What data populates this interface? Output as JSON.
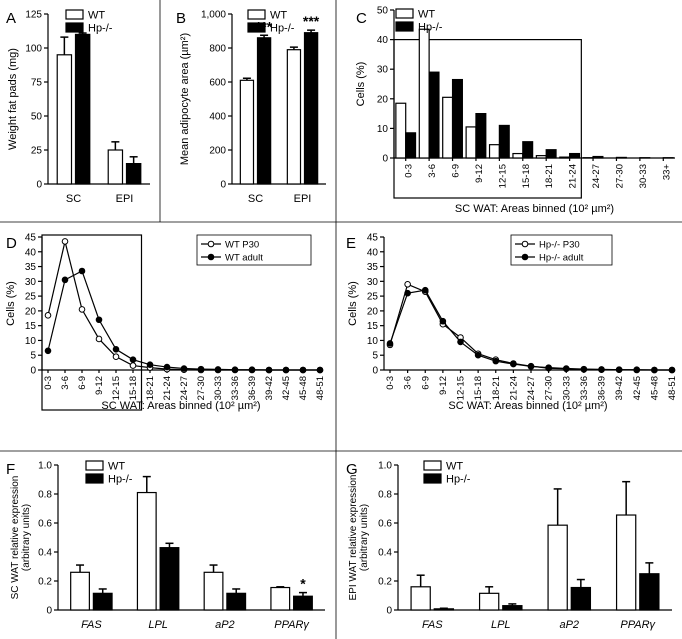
{
  "chart_data": [
    {
      "panel": "A",
      "type": "bar",
      "ylabel": "Weight fat pads (mg)",
      "categories": [
        "SC",
        "EPI"
      ],
      "ylim": [
        0,
        125
      ],
      "yticks": [
        0,
        25,
        50,
        75,
        100,
        125
      ],
      "tick_labels": [
        "0",
        "25",
        "50",
        "75",
        "100",
        "125"
      ],
      "series": [
        {
          "name": "WT",
          "fill": "white",
          "values": [
            95,
            25
          ],
          "errors": [
            13,
            6
          ]
        },
        {
          "name": "Hp-/-",
          "fill": "black",
          "values": [
            110,
            15
          ],
          "errors": [
            1,
            5
          ]
        }
      ],
      "legend_position": "top-left",
      "annotations": []
    },
    {
      "panel": "B",
      "type": "bar",
      "ylabel": "Mean adipocyte area (µm²)",
      "categories": [
        "SC",
        "EPI"
      ],
      "ylim": [
        0,
        1000
      ],
      "yticks": [
        0,
        200,
        400,
        600,
        800,
        1000
      ],
      "tick_labels": [
        "0",
        "200",
        "400",
        "600",
        "800",
        "1,000"
      ],
      "series": [
        {
          "name": "WT",
          "fill": "white",
          "values": [
            610,
            790
          ],
          "errors": [
            12,
            15
          ]
        },
        {
          "name": "Hp-/-",
          "fill": "black",
          "values": [
            860,
            890
          ],
          "errors": [
            15,
            15
          ]
        }
      ],
      "legend_position": "top-left",
      "annotations": [
        {
          "text": "***",
          "category": 0
        },
        {
          "text": "***",
          "category": 1
        }
      ]
    },
    {
      "panel": "C",
      "type": "bar",
      "ylabel": "Cells (%)",
      "xlabel": "SC WAT: Areas binned (10² µm²)",
      "categories": [
        "0-3",
        "3-6",
        "6-9",
        "9-12",
        "12-15",
        "15-18",
        "18-21",
        "21-24",
        "24-27",
        "27-30",
        "30-33",
        "33+"
      ],
      "ylim": [
        0,
        50
      ],
      "yticks": [
        0,
        10,
        20,
        30,
        40,
        50
      ],
      "tick_labels": [
        "0",
        "10",
        "20",
        "30",
        "40",
        "50"
      ],
      "series": [
        {
          "name": "WT",
          "fill": "white",
          "values": [
            18.5,
            43.5,
            20.5,
            10.5,
            4.5,
            1.5,
            0.8,
            0.3,
            0.1,
            0,
            0,
            0
          ]
        },
        {
          "name": "Hp-/-",
          "fill": "black",
          "values": [
            8.5,
            29,
            26.5,
            15,
            11,
            5.5,
            2.8,
            1.5,
            0.5,
            0.2,
            0.1,
            0.1
          ]
        }
      ],
      "legend_position": "top-left",
      "highlight_box_categories": [
        0,
        7
      ]
    },
    {
      "panel": "D",
      "type": "line",
      "ylabel": "Cells (%)",
      "xlabel": "SC WAT: Areas binned (10² µm²)",
      "categories": [
        "0-3",
        "3-6",
        "6-9",
        "9-12",
        "12-15",
        "15-18",
        "18-21",
        "21-24",
        "24-27",
        "27-30",
        "30-33",
        "33-36",
        "36-39",
        "39-42",
        "42-45",
        "45-48",
        "48-51"
      ],
      "ylim": [
        0,
        45
      ],
      "yticks": [
        0,
        5,
        10,
        15,
        20,
        25,
        30,
        35,
        40,
        45
      ],
      "tick_labels": [
        "0",
        "5",
        "10",
        "15",
        "20",
        "25",
        "30",
        "35",
        "40",
        "45"
      ],
      "series": [
        {
          "name": "WT P30",
          "marker": "open",
          "values": [
            18.5,
            43.5,
            20.5,
            10.5,
            4.5,
            1.5,
            0.8,
            0.3,
            0.1,
            0,
            0,
            0,
            0,
            0,
            0,
            0,
            0
          ]
        },
        {
          "name": "WT adult",
          "marker": "filled",
          "values": [
            6.5,
            30.5,
            33.5,
            17,
            7,
            3.5,
            1.8,
            1,
            0.5,
            0.3,
            0.2,
            0.1,
            0.1,
            0,
            0,
            0,
            0
          ]
        }
      ],
      "legend_position": "top-right",
      "highlight_box_categories": [
        0,
        5
      ]
    },
    {
      "panel": "E",
      "type": "line",
      "ylabel": "Cells (%)",
      "xlabel": "SC WAT: Areas binned (10² µm²)",
      "categories": [
        "0-3",
        "3-6",
        "6-9",
        "9-12",
        "12-15",
        "15-18",
        "18-21",
        "21-24",
        "24-27",
        "27-30",
        "30-33",
        "33-36",
        "36-39",
        "39-42",
        "42-45",
        "45-48",
        "48-51"
      ],
      "ylim": [
        0,
        45
      ],
      "yticks": [
        0,
        5,
        10,
        15,
        20,
        25,
        30,
        35,
        40,
        45
      ],
      "tick_labels": [
        "0",
        "5",
        "10",
        "15",
        "20",
        "25",
        "30",
        "35",
        "40",
        "45"
      ],
      "series": [
        {
          "name": "Hp-/- P30",
          "marker": "open",
          "values": [
            8.5,
            29,
            26.5,
            15.5,
            11,
            5.5,
            3.5,
            2.2,
            1.3,
            0.6,
            0.4,
            0.2,
            0.1,
            0.1,
            0,
            0,
            0
          ]
        },
        {
          "name": "Hp-/- adult",
          "marker": "filled",
          "values": [
            9,
            26,
            27,
            16.5,
            9.5,
            5,
            3,
            2,
            1.2,
            0.8,
            0.5,
            0.3,
            0.2,
            0.1,
            0.1,
            0,
            0
          ]
        }
      ],
      "legend_position": "top-right"
    },
    {
      "panel": "F",
      "type": "bar",
      "ylabel": "SC WAT relative expression (arbitrary units)",
      "ylabel_lines": [
        "SC WAT relative expression",
        "(arbitrary units)"
      ],
      "categories": [
        "FAS",
        "LPL",
        "aP2",
        "PPARγ"
      ],
      "ylim": [
        0,
        1.0
      ],
      "yticks": [
        0,
        0.2,
        0.4,
        0.6,
        0.8,
        1.0
      ],
      "tick_labels": [
        "0",
        "0.2",
        "0.4",
        "0.6",
        "0.8",
        "1.0"
      ],
      "series": [
        {
          "name": "WT",
          "fill": "white",
          "values": [
            0.26,
            0.81,
            0.26,
            0.155
          ],
          "errors": [
            0.05,
            0.11,
            0.05,
            0.005
          ]
        },
        {
          "name": "Hp-/-",
          "fill": "black",
          "values": [
            0.115,
            0.43,
            0.115,
            0.095
          ],
          "errors": [
            0.03,
            0.03,
            0.03,
            0.025
          ]
        }
      ],
      "legend_position": "top-left",
      "annotations": [
        {
          "text": "*",
          "category": 3,
          "series": 1
        }
      ]
    },
    {
      "panel": "G",
      "type": "bar",
      "ylabel": "EPI WAT relative expression (arbitrary units)",
      "ylabel_lines": [
        "EPI WAT relative expression",
        "(arbitrary units)"
      ],
      "categories": [
        "FAS",
        "LPL",
        "aP2",
        "PPARγ"
      ],
      "ylim": [
        0,
        1.0
      ],
      "yticks": [
        0,
        0.2,
        0.4,
        0.6,
        0.8,
        1.0
      ],
      "tick_labels": [
        "0",
        "0.2",
        "0.4",
        "0.6",
        "0.8",
        "1.0"
      ],
      "series": [
        {
          "name": "WT",
          "fill": "white",
          "values": [
            0.16,
            0.115,
            0.585,
            0.655
          ],
          "errors": [
            0.08,
            0.045,
            0.25,
            0.23
          ]
        },
        {
          "name": "Hp-/-",
          "fill": "black",
          "values": [
            0.008,
            0.03,
            0.155,
            0.25
          ],
          "errors": [
            0.004,
            0.012,
            0.055,
            0.075
          ]
        }
      ],
      "legend_position": "top-left",
      "annotations": []
    }
  ]
}
